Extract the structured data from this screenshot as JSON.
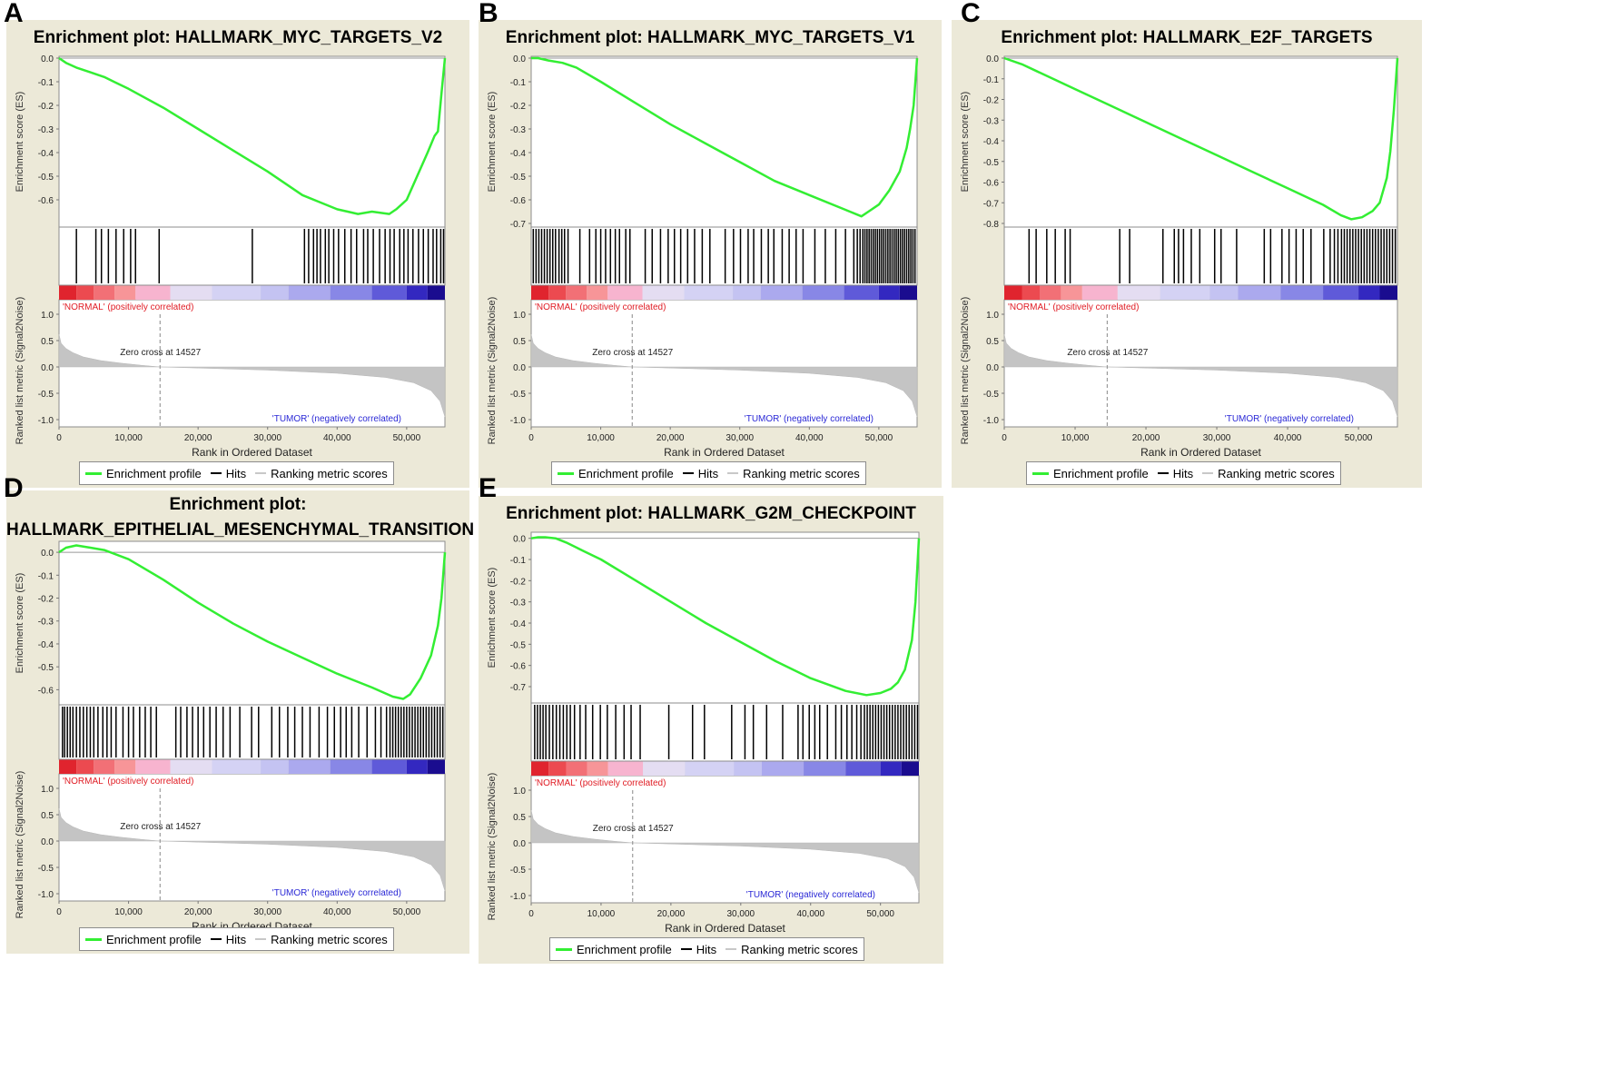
{
  "legend": {
    "enrichment": "Enrichment profile",
    "hits": "Hits",
    "ranking": "Ranking metric scores",
    "colors": {
      "enrichment": "#33ee33",
      "hits": "#000000",
      "ranking": "#c8c8c8"
    }
  },
  "chart_data": [
    {
      "panel": "A",
      "type": "line",
      "title": "Enrichment plot: HALLMARK_MYC_TARGETS_V2",
      "es_ylabel": "Enrichment score (ES)",
      "es_ticks": [
        "0.0",
        "-0.1",
        "-0.2",
        "-0.3",
        "-0.4",
        "-0.5",
        "-0.6"
      ],
      "es_ylim": [
        -0.7,
        0.0
      ],
      "es_x": [
        0,
        1000,
        2500,
        4500,
        6500,
        10000,
        15000,
        20000,
        25000,
        30000,
        35000,
        37500,
        40000,
        43000,
        45000,
        47500,
        48500,
        50000,
        51500,
        53000,
        54000,
        54500,
        55000,
        55500
      ],
      "es_y": [
        0,
        -0.02,
        -0.04,
        -0.06,
        -0.08,
        -0.13,
        -0.21,
        -0.3,
        -0.39,
        -0.48,
        -0.58,
        -0.61,
        -0.64,
        -0.66,
        -0.65,
        -0.66,
        -0.64,
        -0.6,
        -0.5,
        -0.4,
        -0.33,
        -0.31,
        -0.15,
        0
      ],
      "hits": [
        2500,
        5300,
        6100,
        7100,
        8200,
        9300,
        10300,
        11000,
        14400,
        27800,
        35300,
        35900,
        36600,
        37100,
        37600,
        38300,
        38800,
        39500,
        40200,
        41100,
        42000,
        42800,
        43800,
        44400,
        45200,
        46100,
        46900,
        47600,
        48200,
        49000,
        49600,
        50200,
        50900,
        51700,
        52400,
        53100,
        53800,
        54300,
        54900,
        55300
      ],
      "normal_label": "'NORMAL' (positively correlated)",
      "tumor_label": "'TUMOR' (negatively correlated)",
      "zero_cross": "Zero cross at 14527",
      "metric_ylabel": "Ranked list metric (Signal2Noise)",
      "metric_ticks": [
        "1.0",
        "0.5",
        "0.0",
        "-0.5",
        "-1.0"
      ],
      "metric_ylim": [
        -1.0,
        1.0
      ],
      "xlabel": "Rank in Ordered Dataset",
      "x_ticks": [
        "0",
        "10,000",
        "20,000",
        "30,000",
        "40,000",
        "50,000"
      ],
      "xlim": [
        0,
        55500
      ]
    },
    {
      "panel": "B",
      "type": "line",
      "title": "Enrichment plot: HALLMARK_MYC_TARGETS_V1",
      "es_ylabel": "Enrichment score (ES)",
      "es_ticks": [
        "0.0",
        "-0.1",
        "-0.2",
        "-0.3",
        "-0.4",
        "-0.5",
        "-0.6",
        "-0.7"
      ],
      "es_ylim": [
        -0.7,
        0.0
      ],
      "es_x": [
        0,
        1000,
        2500,
        4500,
        6500,
        10000,
        15000,
        20000,
        25000,
        30000,
        35000,
        40000,
        45000,
        47500,
        48500,
        50000,
        51500,
        53000,
        54000,
        54500,
        55000,
        55500
      ],
      "es_y": [
        0,
        0,
        -0.01,
        -0.02,
        -0.04,
        -0.1,
        -0.19,
        -0.28,
        -0.36,
        -0.44,
        -0.52,
        -0.58,
        -0.64,
        -0.67,
        -0.65,
        -0.62,
        -0.56,
        -0.48,
        -0.38,
        -0.3,
        -0.2,
        0
      ],
      "hits": [
        300,
        700,
        1100,
        1500,
        1900,
        2300,
        2700,
        3100,
        3500,
        4000,
        4400,
        4800,
        5300,
        7000,
        8400,
        9300,
        10000,
        10700,
        11400,
        12100,
        12700,
        13600,
        14200,
        16400,
        17400,
        18600,
        19700,
        20600,
        21500,
        22500,
        23500,
        24600,
        25700,
        27900,
        29100,
        30100,
        31200,
        32000,
        33100,
        34100,
        34900,
        36100,
        37100,
        38100,
        39100,
        40800,
        42300,
        43800,
        45200,
        46400,
        46900,
        47300,
        47700,
        48000,
        48300,
        48600,
        48900,
        49200,
        49500,
        49800,
        50100,
        50400,
        50700,
        51000,
        51300,
        51600,
        51900,
        52200,
        52500,
        52800,
        53100,
        53400,
        53700,
        54000,
        54300,
        54600,
        54900,
        55200
      ],
      "normal_label": "'NORMAL' (positively correlated)",
      "tumor_label": "'TUMOR' (negatively correlated)",
      "zero_cross": "Zero cross at 14527",
      "metric_ylabel": "Ranked list metric (Signal2Noise)",
      "metric_ticks": [
        "1.0",
        "0.5",
        "0.0",
        "-0.5",
        "-1.0"
      ],
      "metric_ylim": [
        -1.0,
        1.0
      ],
      "xlabel": "Rank in Ordered Dataset",
      "x_ticks": [
        "0",
        "10,000",
        "20,000",
        "30,000",
        "40,000",
        "50,000"
      ],
      "xlim": [
        0,
        55500
      ]
    },
    {
      "panel": "C",
      "type": "line",
      "title": "Enrichment plot: HALLMARK_E2F_TARGETS",
      "es_ylabel": "Enrichment score (ES)",
      "es_ticks": [
        "0.0",
        "-0.1",
        "-0.2",
        "-0.3",
        "-0.4",
        "-0.5",
        "-0.6",
        "-0.7",
        "-0.8"
      ],
      "es_ylim": [
        -0.8,
        0.0
      ],
      "es_x": [
        0,
        2500,
        5000,
        10000,
        15000,
        20000,
        25000,
        30000,
        35000,
        40000,
        45000,
        47500,
        49000,
        50500,
        52000,
        53000,
        54000,
        54500,
        55000,
        55500
      ],
      "es_y": [
        0,
        -0.03,
        -0.07,
        -0.15,
        -0.23,
        -0.31,
        -0.39,
        -0.47,
        -0.55,
        -0.63,
        -0.71,
        -0.76,
        -0.78,
        -0.77,
        -0.74,
        -0.7,
        -0.58,
        -0.45,
        -0.25,
        0
      ],
      "hits": [
        3500,
        4500,
        6000,
        7200,
        8600,
        9300,
        16300,
        17700,
        22400,
        24000,
        24600,
        25300,
        26400,
        27600,
        29700,
        30600,
        32800,
        36700,
        37600,
        39200,
        40200,
        41200,
        42200,
        43300,
        45100,
        46000,
        46600,
        47100,
        47600,
        48000,
        48400,
        48800,
        49200,
        49600,
        50000,
        50400,
        50800,
        51200,
        51600,
        52000,
        52400,
        52800,
        53200,
        53600,
        54000,
        54400,
        54800,
        55200
      ],
      "normal_label": "'NORMAL' (positively correlated)",
      "tumor_label": "'TUMOR' (negatively correlated)",
      "zero_cross": "Zero cross at 14527",
      "metric_ylabel": "Ranked list metric (Signal2Noise)",
      "metric_ticks": [
        "1.0",
        "0.5",
        "0.0",
        "-0.5",
        "-1.0"
      ],
      "metric_ylim": [
        -1.0,
        1.0
      ],
      "xlabel": "Rank in Ordered Dataset",
      "x_ticks": [
        "0",
        "10,000",
        "20,000",
        "30,000",
        "40,000",
        "50,000"
      ],
      "xlim": [
        0,
        55500
      ]
    },
    {
      "panel": "D",
      "type": "line",
      "title": "Enrichment plot:\nHALLMARK_EPITHELIAL_MESENCHYMAL_TRANSITION",
      "es_ylabel": "Enrichment score (ES)",
      "es_ticks": [
        "0.0",
        "-0.1",
        "-0.2",
        "-0.3",
        "-0.4",
        "-0.5",
        "-0.6"
      ],
      "es_ylim": [
        -0.65,
        0.04
      ],
      "es_x": [
        0,
        1000,
        2500,
        4500,
        6500,
        10000,
        15000,
        20000,
        25000,
        30000,
        35000,
        40000,
        45000,
        48000,
        49500,
        50500,
        52000,
        53500,
        54500,
        55000,
        55500
      ],
      "es_y": [
        0,
        0.02,
        0.03,
        0.02,
        0.01,
        -0.03,
        -0.12,
        -0.22,
        -0.31,
        -0.39,
        -0.46,
        -0.53,
        -0.59,
        -0.63,
        -0.64,
        -0.62,
        -0.55,
        -0.45,
        -0.32,
        -0.2,
        0
      ],
      "hits": [
        500,
        800,
        1200,
        1600,
        2000,
        2500,
        3000,
        3500,
        4000,
        4500,
        5000,
        5600,
        6300,
        6900,
        7500,
        8200,
        9200,
        10000,
        10700,
        11600,
        12400,
        13200,
        14000,
        16800,
        17500,
        18400,
        19200,
        20000,
        20800,
        21700,
        22600,
        23600,
        24600,
        26000,
        27700,
        28700,
        30600,
        31700,
        32900,
        33900,
        35000,
        36100,
        37400,
        38600,
        39600,
        40500,
        41300,
        42100,
        43100,
        44300,
        45500,
        46300,
        47100,
        47600,
        48000,
        48400,
        48800,
        49200,
        49600,
        50000,
        50400,
        50800,
        51200,
        51600,
        52000,
        52400,
        52800,
        53200,
        53600,
        54000,
        54400,
        54800,
        55200
      ],
      "normal_label": "'NORMAL' (positively correlated)",
      "tumor_label": "'TUMOR' (negatively correlated)",
      "zero_cross": "Zero cross at 14527",
      "metric_ylabel": "Ranked list metric (Signal2Noise)",
      "metric_ticks": [
        "1.0",
        "0.5",
        "0.0",
        "-0.5",
        "-1.0"
      ],
      "metric_ylim": [
        -1.0,
        1.0
      ],
      "xlabel": "Rank in Ordered Dataset",
      "x_ticks": [
        "0",
        "10,000",
        "20,000",
        "30,000",
        "40,000",
        "50,000"
      ],
      "xlim": [
        0,
        55500
      ]
    },
    {
      "panel": "E",
      "type": "line",
      "title": "Enrichment plot: HALLMARK_G2M_CHECKPOINT",
      "es_ylabel": "Enrichment score (ES)",
      "es_ticks": [
        "0.0",
        "-0.1",
        "-0.2",
        "-0.3",
        "-0.4",
        "-0.5",
        "-0.6",
        "-0.7"
      ],
      "es_ylim": [
        -0.76,
        0.02
      ],
      "es_x": [
        0,
        1000,
        2000,
        3500,
        5000,
        7500,
        10000,
        15000,
        20000,
        25000,
        30000,
        35000,
        40000,
        45000,
        48000,
        50000,
        51500,
        52500,
        53500,
        54500,
        55000,
        55500
      ],
      "es_y": [
        0,
        0.005,
        0.005,
        0,
        -0.02,
        -0.06,
        -0.1,
        -0.2,
        -0.3,
        -0.4,
        -0.49,
        -0.58,
        -0.66,
        -0.72,
        -0.74,
        -0.73,
        -0.71,
        -0.68,
        -0.62,
        -0.48,
        -0.3,
        0
      ],
      "hits": [
        500,
        900,
        1300,
        1700,
        2100,
        2600,
        3100,
        3600,
        4100,
        4600,
        5100,
        5600,
        6200,
        7000,
        7800,
        8800,
        9900,
        10900,
        12100,
        13300,
        14300,
        15600,
        19700,
        23100,
        24800,
        28700,
        30600,
        31800,
        33700,
        36000,
        38200,
        38900,
        39800,
        40600,
        41300,
        42400,
        43600,
        44400,
        45200,
        45900,
        46600,
        47200,
        47700,
        48100,
        48500,
        48900,
        49300,
        49700,
        50100,
        50500,
        50900,
        51300,
        51700,
        52100,
        52500,
        52900,
        53300,
        53700,
        54100,
        54500,
        54900,
        55300
      ],
      "normal_label": "'NORMAL' (positively correlated)",
      "tumor_label": "'TUMOR' (negatively correlated)",
      "zero_cross": "Zero cross at 14527",
      "metric_ylabel": "Ranked list metric (Signal2Noise)",
      "metric_ticks": [
        "1.0",
        "0.5",
        "0.0",
        "-0.5",
        "-1.0"
      ],
      "metric_ylim": [
        -1.0,
        1.0
      ],
      "xlabel": "Rank in Ordered Dataset",
      "x_ticks": [
        "0",
        "10,000",
        "20,000",
        "30,000",
        "40,000",
        "50,000"
      ],
      "xlim": [
        0,
        55500
      ]
    }
  ]
}
